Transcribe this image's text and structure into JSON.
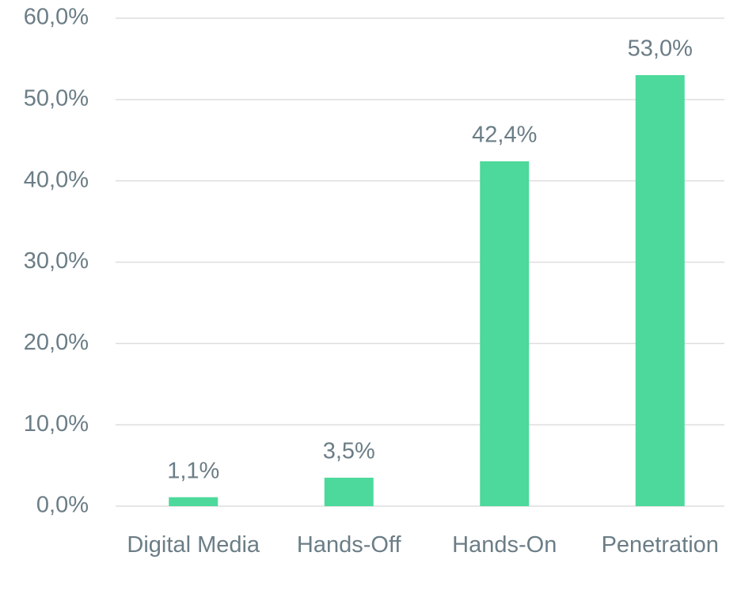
{
  "chart_data": {
    "type": "bar",
    "categories": [
      "Digital Media",
      "Hands-Off",
      "Hands-On",
      "Penetration"
    ],
    "values": [
      1.1,
      3.5,
      42.4,
      53.0
    ],
    "value_labels": [
      "1,1%",
      "3,5%",
      "42,4%",
      "53,0%"
    ],
    "color": "#4dd99b",
    "ylim": [
      0,
      60
    ],
    "yticks": [
      {
        "value": 0,
        "label": "0,0%"
      },
      {
        "value": 10,
        "label": "10,0%"
      },
      {
        "value": 20,
        "label": "20,0%"
      },
      {
        "value": 30,
        "label": "30,0%"
      },
      {
        "value": 40,
        "label": "40,0%"
      },
      {
        "value": 50,
        "label": "50,0%"
      },
      {
        "value": 60,
        "label": "60,0%"
      }
    ],
    "grid": true
  }
}
